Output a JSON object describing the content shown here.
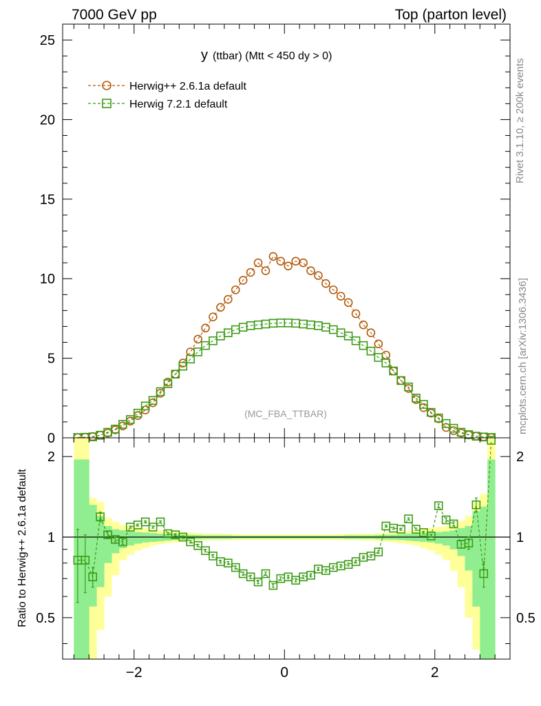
{
  "header": {
    "left": "7000 GeV pp",
    "right": "Top (parton level)"
  },
  "side_labels": {
    "rivet": "Rivet 3.1.10, ≥ 200k events",
    "mcplots": "mcplots.cern.ch [arXiv:1306.3436]"
  },
  "colors": {
    "herwigpp": "#b35806",
    "herwig7": "#3a9a14",
    "band_inner": "#90ee90",
    "band_outer": "#ffff99"
  },
  "chart_data": [
    {
      "type": "line",
      "title_main": "y",
      "title_sub": "(ttbar) (Mtt < 450 dy > 0)",
      "annotation": "(MC_FBA_TTBAR)",
      "xlabel": "",
      "ylabel": "",
      "xlim": [
        -2.95,
        3.0
      ],
      "ylim": [
        0,
        26
      ],
      "yticks": [
        0,
        5,
        10,
        15,
        20,
        25
      ],
      "ytick_labels": [
        "0",
        "5",
        "10",
        "15",
        "20",
        "25"
      ],
      "x": [
        -2.75,
        -2.65,
        -2.55,
        -2.45,
        -2.35,
        -2.25,
        -2.15,
        -2.05,
        -1.95,
        -1.85,
        -1.75,
        -1.65,
        -1.55,
        -1.45,
        -1.35,
        -1.25,
        -1.15,
        -1.05,
        -0.95,
        -0.85,
        -0.75,
        -0.65,
        -0.55,
        -0.45,
        -0.35,
        -0.25,
        -0.15,
        -0.05,
        0.05,
        0.15,
        0.25,
        0.35,
        0.45,
        0.55,
        0.65,
        0.75,
        0.85,
        0.95,
        1.05,
        1.15,
        1.25,
        1.35,
        1.45,
        1.55,
        1.65,
        1.75,
        1.85,
        1.95,
        2.05,
        2.15,
        2.25,
        2.35,
        2.45,
        2.55,
        2.65,
        2.75
      ],
      "series": [
        {
          "name": "Herwig++ 2.6.1a default",
          "marker": "circle",
          "values": [
            0.02,
            0.04,
            0.08,
            0.17,
            0.3,
            0.5,
            0.75,
            1.05,
            1.4,
            1.75,
            2.2,
            2.8,
            3.5,
            4.0,
            4.7,
            5.4,
            6.2,
            6.9,
            7.6,
            8.2,
            8.7,
            9.3,
            9.9,
            10.4,
            11.0,
            10.5,
            11.4,
            11.1,
            10.8,
            11.1,
            11.0,
            10.5,
            10.2,
            9.7,
            9.3,
            8.9,
            8.5,
            7.8,
            7.1,
            6.6,
            5.9,
            5.2,
            4.2,
            3.6,
            3.1,
            2.4,
            1.9,
            1.55,
            1.2,
            0.65,
            0.45,
            0.3,
            0.18,
            0.1,
            0.06,
            0.02
          ]
        },
        {
          "name": "Herwig 7.2.1 default",
          "marker": "square",
          "values": [
            0.015,
            0.03,
            0.06,
            0.16,
            0.35,
            0.55,
            0.85,
            1.15,
            1.55,
            2.0,
            2.35,
            2.9,
            3.4,
            4.0,
            4.5,
            4.95,
            5.4,
            5.8,
            6.1,
            6.4,
            6.6,
            6.8,
            6.95,
            7.05,
            7.1,
            7.15,
            7.2,
            7.22,
            7.22,
            7.2,
            7.15,
            7.1,
            7.05,
            6.95,
            6.8,
            6.6,
            6.4,
            6.1,
            5.8,
            5.45,
            5.05,
            4.7,
            4.2,
            3.6,
            3.2,
            2.5,
            2.1,
            1.6,
            1.25,
            0.9,
            0.6,
            0.35,
            0.2,
            0.1,
            0.05,
            0.02
          ]
        }
      ]
    },
    {
      "type": "line",
      "ylabel": "Ratio to Herwig++ 2.6.1a default",
      "xlim": [
        -2.95,
        3.0
      ],
      "ylim": [
        0.35,
        2.35
      ],
      "xticks": [
        -2,
        0,
        2
      ],
      "xtick_labels": [
        "−2",
        "0",
        "2"
      ],
      "yticks": [
        0.5,
        1,
        2
      ],
      "ytick_labels": [
        "0.5",
        "1",
        "2"
      ],
      "x": [
        -2.75,
        -2.65,
        -2.55,
        -2.45,
        -2.35,
        -2.25,
        -2.15,
        -2.05,
        -1.95,
        -1.85,
        -1.75,
        -1.65,
        -1.55,
        -1.45,
        -1.35,
        -1.25,
        -1.15,
        -1.05,
        -0.95,
        -0.85,
        -0.75,
        -0.65,
        -0.55,
        -0.45,
        -0.35,
        -0.25,
        -0.15,
        -0.05,
        0.05,
        0.15,
        0.25,
        0.35,
        0.45,
        0.55,
        0.65,
        0.75,
        0.85,
        0.95,
        1.05,
        1.15,
        1.25,
        1.35,
        1.45,
        1.55,
        1.65,
        1.75,
        1.85,
        1.95,
        2.05,
        2.15,
        2.25,
        2.35,
        2.45,
        2.55,
        2.65,
        2.75
      ],
      "bands": {
        "outer_upper": [
          2.35,
          2.35,
          1.4,
          1.35,
          1.18,
          1.14,
          1.11,
          1.1,
          1.09,
          1.08,
          1.07,
          1.06,
          1.055,
          1.05,
          1.045,
          1.04,
          1.035,
          1.03,
          1.03,
          1.03,
          1.03,
          1.025,
          1.025,
          1.025,
          1.025,
          1.025,
          1.025,
          1.025,
          1.025,
          1.025,
          1.025,
          1.025,
          1.025,
          1.025,
          1.025,
          1.025,
          1.03,
          1.03,
          1.03,
          1.03,
          1.035,
          1.04,
          1.045,
          1.05,
          1.055,
          1.06,
          1.07,
          1.08,
          1.09,
          1.1,
          1.11,
          1.15,
          1.2,
          1.35,
          1.45,
          2.35
        ],
        "outer_lower": [
          0.35,
          0.35,
          0.35,
          0.45,
          0.6,
          0.72,
          0.82,
          0.86,
          0.89,
          0.91,
          0.93,
          0.94,
          0.95,
          0.955,
          0.96,
          0.965,
          0.97,
          0.97,
          0.975,
          0.975,
          0.975,
          0.975,
          0.975,
          0.975,
          0.975,
          0.975,
          0.975,
          0.975,
          0.975,
          0.975,
          0.975,
          0.975,
          0.975,
          0.975,
          0.975,
          0.975,
          0.975,
          0.975,
          0.97,
          0.97,
          0.965,
          0.96,
          0.955,
          0.95,
          0.94,
          0.93,
          0.91,
          0.89,
          0.86,
          0.82,
          0.75,
          0.65,
          0.5,
          0.38,
          0.35,
          0.35
        ],
        "inner_upper": [
          1.95,
          1.95,
          1.32,
          1.2,
          1.1,
          1.07,
          1.06,
          1.05,
          1.045,
          1.04,
          1.035,
          1.03,
          1.03,
          1.025,
          1.02,
          1.02,
          1.018,
          1.015,
          1.015,
          1.015,
          1.015,
          1.012,
          1.012,
          1.012,
          1.012,
          1.012,
          1.012,
          1.012,
          1.012,
          1.012,
          1.012,
          1.012,
          1.012,
          1.012,
          1.012,
          1.012,
          1.015,
          1.015,
          1.015,
          1.015,
          1.018,
          1.02,
          1.02,
          1.025,
          1.03,
          1.03,
          1.035,
          1.04,
          1.045,
          1.05,
          1.06,
          1.08,
          1.1,
          1.25,
          1.3,
          1.95
        ],
        "inner_lower": [
          0.35,
          0.35,
          0.55,
          0.65,
          0.8,
          0.87,
          0.91,
          0.93,
          0.945,
          0.955,
          0.96,
          0.965,
          0.97,
          0.975,
          0.978,
          0.98,
          0.982,
          0.985,
          0.985,
          0.985,
          0.985,
          0.988,
          0.988,
          0.988,
          0.988,
          0.988,
          0.988,
          0.988,
          0.988,
          0.988,
          0.988,
          0.988,
          0.988,
          0.988,
          0.988,
          0.988,
          0.985,
          0.985,
          0.985,
          0.985,
          0.982,
          0.98,
          0.978,
          0.975,
          0.97,
          0.965,
          0.96,
          0.955,
          0.945,
          0.93,
          0.9,
          0.85,
          0.75,
          0.55,
          0.35,
          0.35
        ]
      },
      "series": [
        {
          "name": "Herwig 7.2.1 default",
          "marker": "square",
          "values": [
            0.82,
            0.82,
            0.71,
            1.19,
            1.02,
            0.98,
            0.96,
            1.09,
            1.11,
            1.14,
            1.09,
            1.14,
            1.03,
            1.02,
            1.0,
            0.96,
            0.93,
            0.89,
            0.85,
            0.81,
            0.8,
            0.77,
            0.73,
            0.71,
            0.68,
            0.73,
            0.66,
            0.7,
            0.71,
            0.69,
            0.71,
            0.72,
            0.76,
            0.75,
            0.77,
            0.78,
            0.79,
            0.81,
            0.84,
            0.85,
            0.88,
            1.1,
            1.08,
            1.07,
            1.17,
            1.07,
            1.04,
            1.01,
            1.31,
            1.16,
            1.12,
            0.94,
            0.95,
            1.32,
            0.73,
            2.3
          ],
          "errors": [
            0.25,
            0.2,
            0.06,
            0.05,
            0.03,
            0.02,
            0.02,
            0.01,
            0.01,
            0.01,
            0.01,
            0.01,
            0.01,
            0.01,
            0.01,
            0.01,
            0.01,
            0.01,
            0.01,
            0.01,
            0.01,
            0.01,
            0.01,
            0.01,
            0.01,
            0.01,
            0.01,
            0.01,
            0.01,
            0.01,
            0.01,
            0.01,
            0.01,
            0.01,
            0.01,
            0.01,
            0.01,
            0.01,
            0.01,
            0.01,
            0.01,
            0.01,
            0.01,
            0.01,
            0.01,
            0.01,
            0.01,
            0.01,
            0.02,
            0.02,
            0.02,
            0.03,
            0.05,
            0.08,
            0.08,
            0.0
          ]
        }
      ]
    }
  ]
}
